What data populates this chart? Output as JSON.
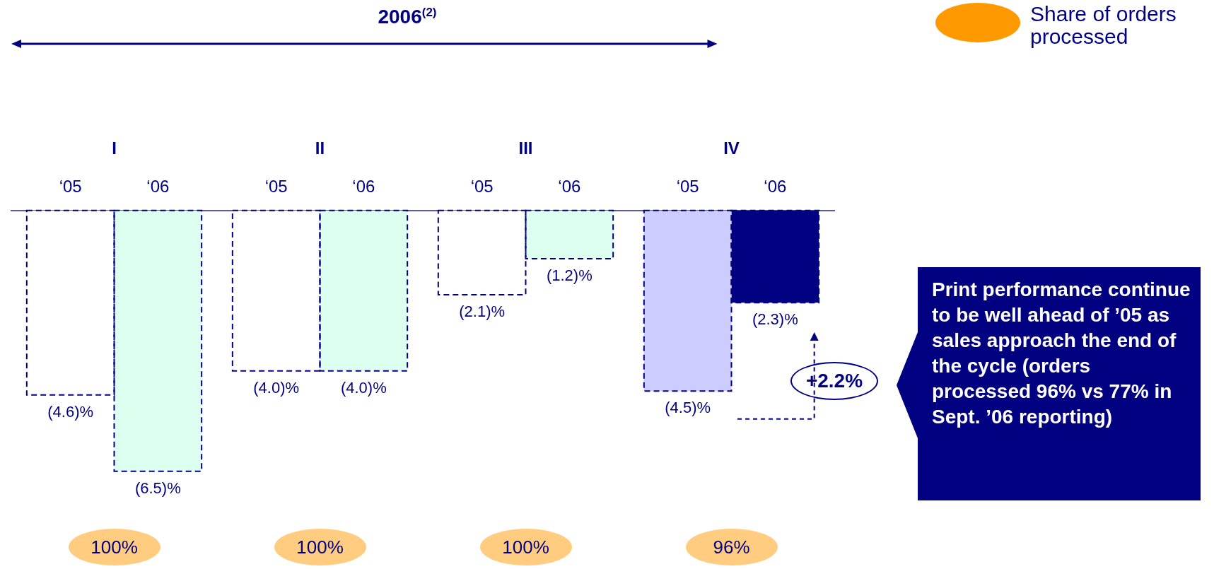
{
  "chart_data": {
    "type": "bar",
    "title": "2006$^{(2)}$",
    "legend_title": "Share of orders processed",
    "categories": [
      "I",
      "II",
      "III",
      "IV"
    ],
    "series": [
      {
        "name": "‘05",
        "colors": [
          "#ffffff",
          "#ffffff",
          "#ffffff",
          "#ccccff"
        ],
        "values": [
          -4.6,
          -4.0,
          -2.1,
          -4.5
        ],
        "value_labels": [
          "(4.6)%",
          "(4.0)%",
          "(2.1)%",
          "(4.5)%"
        ]
      },
      {
        "name": "‘06",
        "colors": [
          "#ddfff0",
          "#ddfff0",
          "#ddfff0",
          "#000080"
        ],
        "values": [
          -6.5,
          -4.0,
          -1.2,
          -2.3
        ],
        "value_labels": [
          "(6.5)%",
          "(4.0)%",
          "(1.2)%",
          "(2.3)%"
        ]
      }
    ],
    "annotations": [
      "100%",
      "100%",
      "100%",
      "96%",
      "+2.2%",
      "Print performance continue to be well ahead of ’05 as sales approach the end of the cycle (orders processed 96% vs 77% in Sept. ’06 reporting)"
    ]
  }
}
